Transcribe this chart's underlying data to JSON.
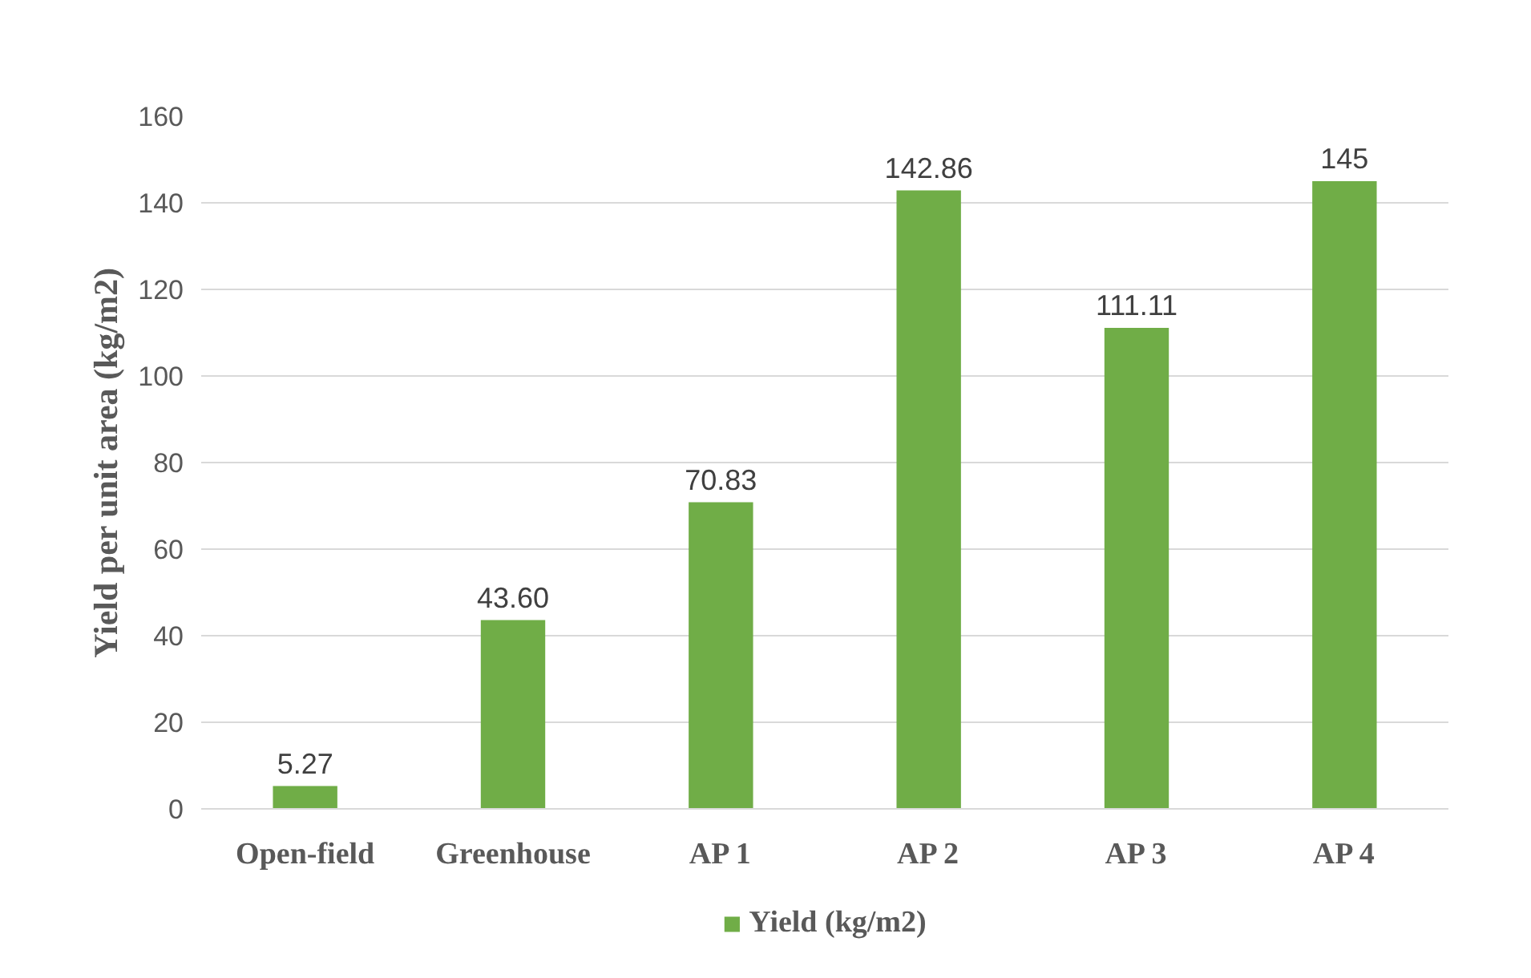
{
  "chart_data": {
    "type": "bar",
    "ylabel": "Yield per unit area (kg/m2)",
    "categories": [
      "Open-field",
      "Greenhouse",
      "AP 1",
      "AP 2",
      "AP 3",
      "AP 4"
    ],
    "series": [
      {
        "name": "Yield (kg/m2)",
        "color": "#70ad47",
        "values": [
          5.27,
          43.6,
          70.83,
          142.86,
          111.11,
          145
        ],
        "value_labels": [
          "5.27",
          "43.60",
          "70.83",
          "142.86",
          "111.11",
          "145"
        ]
      }
    ],
    "ylim": [
      0,
      160
    ],
    "yticks": [
      0,
      20,
      40,
      60,
      80,
      100,
      120,
      140,
      160
    ],
    "grid": "y",
    "legend": "bottom"
  }
}
